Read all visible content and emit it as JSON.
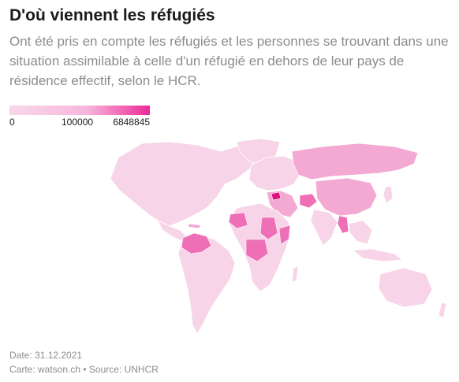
{
  "title": "D'où viennent les réfugiés",
  "subtitle": "Ont été pris en compte les réfugiés et les personnes se trouvant dans une situation assimilable à celle d'un réfugié en dehors de leur pays de résidence effectif, selon le HCR.",
  "legend": {
    "min_label": "0",
    "mid_label": "100000",
    "max_label": "6848845",
    "color_low": "#f8d7ea",
    "color_mid": "#f7b7dc",
    "color_high": "#ec2a97"
  },
  "footer": {
    "date": "Date: 31.12.2021",
    "credit": "Carte: watson.ch • Source: UNHCR"
  }
}
